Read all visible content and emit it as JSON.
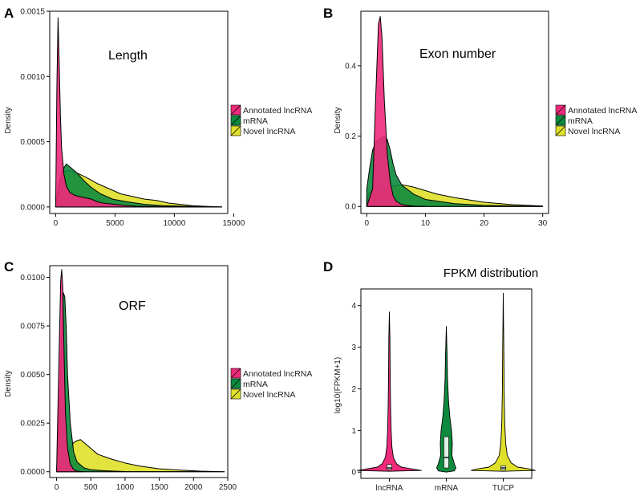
{
  "colors": {
    "annotated": "#ee2a7b",
    "mrna": "#0d8a3e",
    "novel": "#e0e02a",
    "outline": "#000000"
  },
  "legend_labels": [
    "Annotated lncRNA",
    "mRNA",
    "Novel lncRNA"
  ],
  "chart_data": [
    {
      "panel": "A",
      "type": "area",
      "title": "Length",
      "ylabel": "Density",
      "xlabel": "",
      "xlim": [
        -500,
        14500
      ],
      "ylim": [
        -5e-05,
        0.0015
      ],
      "xticks": [
        0,
        5000,
        10000,
        15000
      ],
      "xtick_labels": [
        "0",
        "5000",
        "10000",
        "15000"
      ],
      "yticks": [
        0,
        0.0005,
        0.001,
        0.0015
      ],
      "ytick_labels": [
        "0.0000",
        "0.0005",
        "0.0010",
        "0.0015"
      ],
      "series": [
        {
          "name": "Novel lncRNA",
          "x": [
            0,
            300,
            700,
            1200,
            1800,
            2500,
            3500,
            4500,
            5500,
            6500,
            7500,
            8500,
            9500,
            10500,
            11500,
            12500,
            14000
          ],
          "y": [
            2e-05,
            0.0002,
            0.00027,
            0.00028,
            0.00026,
            0.00023,
            0.00018,
            0.00014,
            0.0001,
            8e-05,
            6e-05,
            5e-05,
            3e-05,
            2e-05,
            1e-05,
            5e-06,
            0.0
          ]
        },
        {
          "name": "mRNA",
          "x": [
            0,
            200,
            500,
            900,
            1300,
            1800,
            2400,
            3000,
            3800,
            4800,
            6000,
            7500,
            9000,
            11000,
            14000
          ],
          "y": [
            0.0,
            0.00012,
            0.00027,
            0.00033,
            0.0003,
            0.00026,
            0.0002,
            0.00015,
            0.0001,
            6e-05,
            4e-05,
            2e-05,
            1e-05,
            5e-06,
            0.0
          ]
        },
        {
          "name": "Annotated lncRNA",
          "x": [
            0,
            100,
            200,
            300,
            400,
            500,
            700,
            900,
            1200,
            1600,
            2000,
            2500,
            3000,
            3500,
            4000,
            5000,
            6000,
            7000,
            9000,
            11000,
            14000
          ],
          "y": [
            0.0,
            0.0009,
            0.00145,
            0.0011,
            0.0007,
            0.00045,
            0.00025,
            0.00016,
            0.00011,
            9e-05,
            8e-05,
            7e-05,
            6e-05,
            4e-05,
            3e-05,
            2e-05,
            1e-05,
            5e-06,
            3e-06,
            1e-06,
            0.0
          ]
        }
      ]
    },
    {
      "panel": "B",
      "type": "area",
      "title": "Exon number",
      "ylabel": "Density",
      "xlabel": "",
      "xlim": [
        -1,
        31
      ],
      "ylim": [
        -0.02,
        0.555
      ],
      "xticks": [
        0,
        10,
        20,
        30
      ],
      "xtick_labels": [
        "0",
        "10",
        "20",
        "30"
      ],
      "yticks": [
        0,
        0.2,
        0.4
      ],
      "ytick_labels": [
        "0.0",
        "0.2",
        "0.4"
      ],
      "series": [
        {
          "name": "Novel lncRNA",
          "x": [
            0,
            0.5,
            1,
            2,
            3,
            4,
            5,
            6,
            8,
            10,
            12,
            15,
            20,
            25,
            30
          ],
          "y": [
            0.02,
            0.04,
            0.045,
            0.048,
            0.05,
            0.055,
            0.06,
            0.062,
            0.055,
            0.045,
            0.035,
            0.025,
            0.012,
            0.005,
            0.001
          ]
        },
        {
          "name": "mRNA",
          "x": [
            0,
            0.5,
            1,
            1.5,
            2,
            2.5,
            3,
            3.5,
            4,
            4.5,
            5,
            6,
            8,
            10,
            15,
            20,
            30
          ],
          "y": [
            0.05,
            0.11,
            0.16,
            0.18,
            0.19,
            0.195,
            0.2,
            0.19,
            0.16,
            0.12,
            0.09,
            0.06,
            0.035,
            0.02,
            0.008,
            0.003,
            0.0
          ]
        },
        {
          "name": "Annotated lncRNA",
          "x": [
            0,
            1,
            1.5,
            2,
            2.3,
            2.6,
            3,
            3.5,
            4,
            4.5,
            5,
            6,
            8,
            10
          ],
          "y": [
            0.0,
            0.05,
            0.3,
            0.52,
            0.54,
            0.48,
            0.3,
            0.15,
            0.07,
            0.03,
            0.015,
            0.005,
            0.001,
            0.0
          ]
        }
      ]
    },
    {
      "panel": "C",
      "type": "area",
      "title": "ORF",
      "ylabel": "Density",
      "xlabel": "",
      "xlim": [
        -100,
        2500
      ],
      "ylim": [
        -0.0003,
        0.0106
      ],
      "xticks": [
        0,
        500,
        1000,
        1500,
        2000,
        2500
      ],
      "xtick_labels": [
        "0",
        "500",
        "1000",
        "1500",
        "2000",
        "2500"
      ],
      "yticks": [
        0,
        0.0025,
        0.005,
        0.0075,
        0.01
      ],
      "ytick_labels": [
        "0.0000",
        "0.0025",
        "0.0050",
        "0.0075",
        "0.0100"
      ],
      "series": [
        {
          "name": "Novel lncRNA",
          "x": [
            0,
            100,
            150,
            200,
            250,
            300,
            350,
            400,
            500,
            600,
            800,
            1000,
            1200,
            1500,
            1800,
            2100,
            2450
          ],
          "y": [
            0.0,
            0.0004,
            0.0008,
            0.0012,
            0.0015,
            0.0016,
            0.00165,
            0.0015,
            0.0012,
            0.0009,
            0.00065,
            0.00045,
            0.0003,
            0.00015,
            8e-05,
            3e-05,
            0.0
          ]
        },
        {
          "name": "mRNA",
          "x": [
            0,
            50,
            80,
            100,
            120,
            140,
            160,
            200,
            250,
            300,
            400,
            500,
            700,
            1000,
            2450
          ],
          "y": [
            0.0,
            0.004,
            0.008,
            0.0092,
            0.009,
            0.0075,
            0.005,
            0.0025,
            0.001,
            0.0005,
            0.0002,
            0.0001,
            5e-05,
            1e-05,
            0.0
          ]
        },
        {
          "name": "Annotated lncRNA",
          "x": [
            0,
            30,
            60,
            75,
            90,
            110,
            130,
            160,
            200,
            250,
            300,
            400
          ],
          "y": [
            0.0,
            0.005,
            0.0098,
            0.0104,
            0.0095,
            0.006,
            0.003,
            0.0012,
            0.0004,
            0.0001,
            3e-05,
            0.0
          ]
        }
      ]
    },
    {
      "panel": "D",
      "type": "violin",
      "title": "FPKM distribution",
      "ylabel": "log10(FPKM+1)",
      "xlabel": "",
      "ylim": [
        -0.15,
        4.4
      ],
      "yticks": [
        0,
        1,
        2,
        3,
        4
      ],
      "ytick_labels": [
        "0",
        "1",
        "2",
        "3",
        "4"
      ],
      "categories": [
        "lncRNA",
        "mRNA",
        "TUCP"
      ],
      "max_values": [
        3.85,
        3.5,
        4.3
      ],
      "box": [
        {
          "q1": 0.06,
          "median": 0.1,
          "q3": 0.18
        },
        {
          "q1": 0.1,
          "median": 0.35,
          "q3": 0.85
        },
        {
          "q1": 0.05,
          "median": 0.1,
          "q3": 0.15
        }
      ]
    }
  ]
}
